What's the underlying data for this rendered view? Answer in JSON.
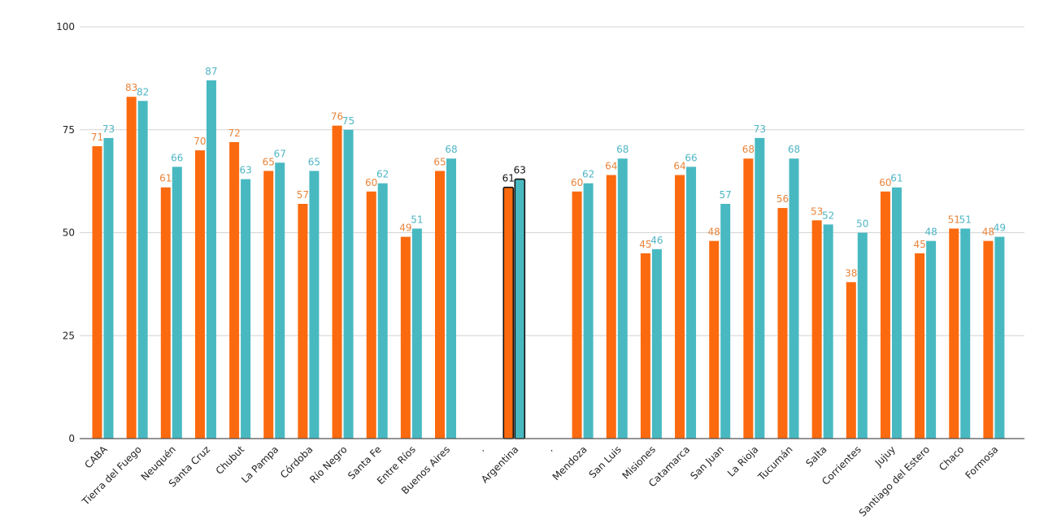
{
  "chart_data": {
    "type": "bar",
    "title": "",
    "xlabel": "",
    "ylabel": "",
    "ylim": [
      0,
      100
    ],
    "yticks": [
      0,
      25,
      50,
      75,
      100
    ],
    "grid": true,
    "legend": "none",
    "categories": [
      "CABA",
      "Tierra del Fuego",
      "Neuquén",
      "Santa Cruz",
      "Chubut",
      "La Pampa",
      "Córdoba",
      "Río Negro",
      "Santa Fe",
      "Entre Ríos",
      "Buenos Aires",
      ".",
      "Argentina",
      ".",
      "Mendoza",
      "San Luis",
      "Misiones",
      "Catamarca",
      "San Juan",
      "La Rioja",
      "Tucumán",
      "Salta",
      "Corrientes",
      "Jujuy",
      "Santiago del Estero",
      "Chaco",
      "Formosa"
    ],
    "highlight_category": "Argentina",
    "series": [
      {
        "color": "#fb6a0e",
        "label_color": "#e8843a",
        "values": [
          71,
          83,
          61,
          70,
          72,
          65,
          57,
          76,
          60,
          49,
          65,
          null,
          61,
          null,
          60,
          64,
          45,
          64,
          48,
          68,
          56,
          53,
          38,
          60,
          45,
          51,
          48
        ]
      },
      {
        "color": "#48b9c1",
        "label_color": "#4fb5c4",
        "values": [
          73,
          82,
          66,
          87,
          63,
          67,
          65,
          75,
          62,
          51,
          68,
          null,
          63,
          null,
          62,
          68,
          46,
          66,
          57,
          73,
          68,
          52,
          50,
          61,
          48,
          51,
          49
        ]
      }
    ]
  }
}
